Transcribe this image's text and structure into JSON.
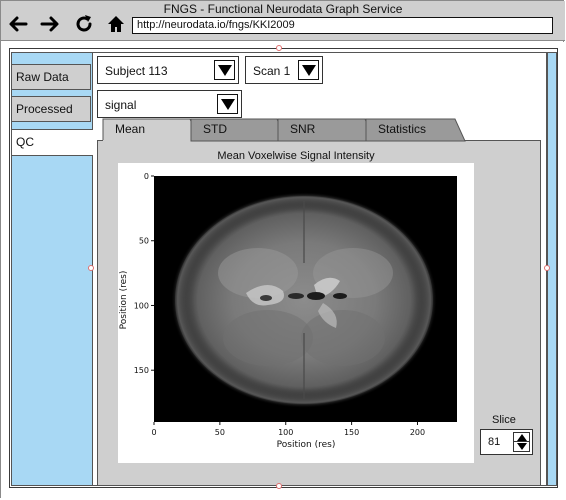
{
  "window": {
    "title": "FNGS - Functional Neurodata Graph Service",
    "url": "http://neurodata.io/fngs/KKI2009"
  },
  "nav": {
    "back_icon": "arrow-left-icon",
    "forward_icon": "arrow-right-icon",
    "reload_icon": "reload-icon",
    "home_icon": "home-icon"
  },
  "sidebar": {
    "items": [
      {
        "label": "Raw Data",
        "active": false
      },
      {
        "label": "Processed",
        "active": false
      },
      {
        "label": "QC",
        "active": true
      }
    ]
  },
  "controls": {
    "subject": "Subject 113",
    "scan": "Scan 1",
    "measure": "signal"
  },
  "tabs": [
    {
      "label": "Mean",
      "active": true
    },
    {
      "label": "STD",
      "active": false
    },
    {
      "label": "SNR",
      "active": false
    },
    {
      "label": "Statistics",
      "active": false
    }
  ],
  "slice": {
    "label": "Slice",
    "value": "81"
  },
  "colors": {
    "sidebar_blue": "#a8d8f4",
    "panel_gray": "#cfcfcf",
    "handle_red": "#e07070"
  },
  "chart_data": {
    "type": "heatmap",
    "title": "Mean Voxelwise Signal Intensity",
    "xlabel": "Position (res)",
    "ylabel": "Position (res)",
    "xticks": [
      "0",
      "50",
      "100",
      "150",
      "200"
    ],
    "yticks": [
      "0",
      "50",
      "100",
      "150"
    ],
    "xlim": [
      0,
      230
    ],
    "ylim": [
      0,
      190
    ],
    "colormap": "grayscale",
    "description_of_values": "axial brain slice image, mean signal intensity per voxel"
  }
}
